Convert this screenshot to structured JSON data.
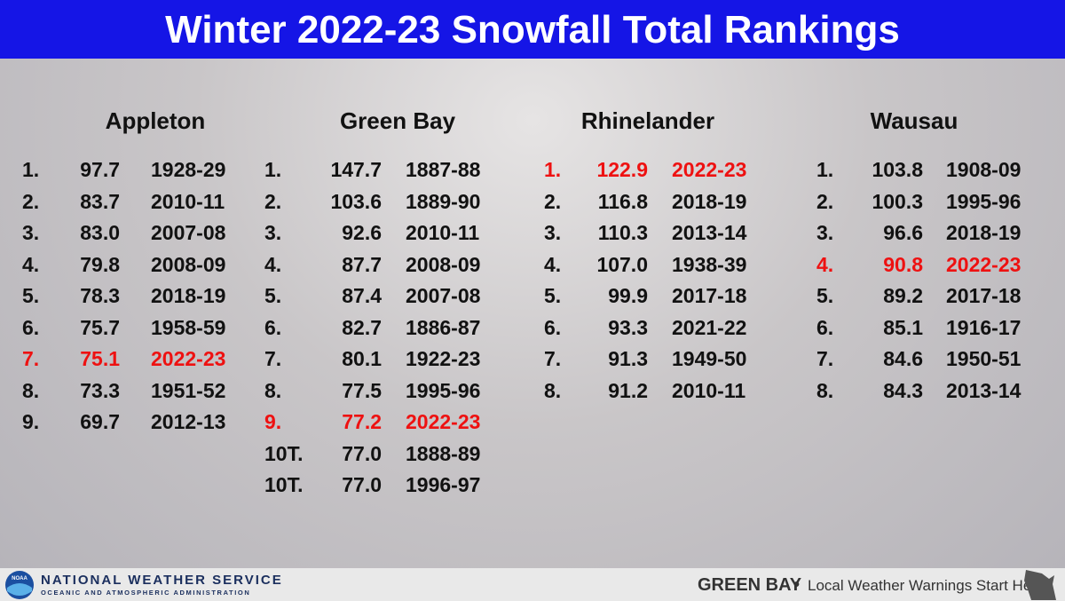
{
  "header": {
    "title": "Winter 2022-23 Snowfall Total Rankings"
  },
  "highlight_color": "#ee1111",
  "columns": [
    {
      "name": "Appleton",
      "highlight": 6,
      "rows": [
        [
          "1.",
          "97.7",
          "1928-29"
        ],
        [
          "2.",
          "83.7",
          "2010-11"
        ],
        [
          "3.",
          "83.0",
          "2007-08"
        ],
        [
          "4.",
          "79.8",
          "2008-09"
        ],
        [
          "5.",
          "78.3",
          "2018-19"
        ],
        [
          "6.",
          "75.7",
          "1958-59"
        ],
        [
          "7.",
          "75.1",
          "2022-23"
        ],
        [
          "8.",
          "73.3",
          "1951-52"
        ],
        [
          "9.",
          "69.7",
          "2012-13"
        ]
      ]
    },
    {
      "name": "Green Bay",
      "highlight": 8,
      "rows": [
        [
          "1.",
          "147.7",
          "1887-88"
        ],
        [
          "2.",
          "103.6",
          "1889-90"
        ],
        [
          "3.",
          "92.6",
          "2010-11"
        ],
        [
          "4.",
          "87.7",
          "2008-09"
        ],
        [
          "5.",
          "87.4",
          "2007-08"
        ],
        [
          "6.",
          "82.7",
          "1886-87"
        ],
        [
          "7.",
          "80.1",
          "1922-23"
        ],
        [
          "8.",
          "77.5",
          "1995-96"
        ],
        [
          "9.",
          "77.2",
          "2022-23"
        ],
        [
          "10T.",
          "77.0",
          "1888-89"
        ],
        [
          "10T.",
          "77.0",
          "1996-97"
        ]
      ]
    },
    {
      "name": "Rhinelander",
      "highlight": 0,
      "rows": [
        [
          "1.",
          "122.9",
          "2022-23"
        ],
        [
          "2.",
          "116.8",
          "2018-19"
        ],
        [
          "3.",
          "110.3",
          "2013-14"
        ],
        [
          "4.",
          "107.0",
          "1938-39"
        ],
        [
          "5.",
          "99.9",
          "2017-18"
        ],
        [
          "6.",
          "93.3",
          "2021-22"
        ],
        [
          "7.",
          "91.3",
          "1949-50"
        ],
        [
          "8.",
          "91.2",
          "2010-11"
        ]
      ]
    },
    {
      "name": "Wausau",
      "highlight": 3,
      "rows": [
        [
          "1.",
          "103.8",
          "1908-09"
        ],
        [
          "2.",
          "100.3",
          "1995-96"
        ],
        [
          "3.",
          "96.6",
          "2018-19"
        ],
        [
          "4.",
          "90.8",
          "2022-23"
        ],
        [
          "5.",
          "89.2",
          "2017-18"
        ],
        [
          "6.",
          "85.1",
          "1916-17"
        ],
        [
          "7.",
          "84.6",
          "1950-51"
        ],
        [
          "8.",
          "84.3",
          "2013-14"
        ]
      ]
    }
  ],
  "footer": {
    "agency": "NATIONAL WEATHER SERVICE",
    "subagency": "OCEANIC AND ATMOSPHERIC ADMINISTRATION",
    "logo": "NOAA",
    "office": "GREEN BAY",
    "slogan": "Local Weather Warnings Start Here"
  }
}
